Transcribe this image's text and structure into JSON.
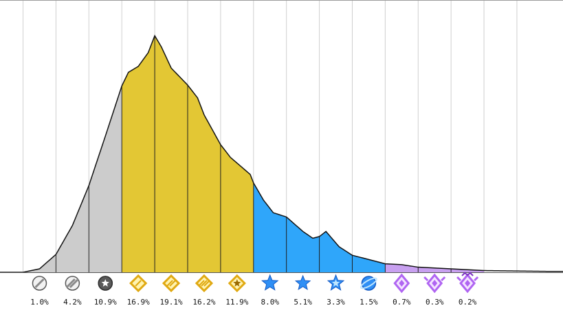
{
  "chart_data": {
    "type": "area",
    "title": "",
    "xlabel": "",
    "ylabel": "",
    "legend": "none",
    "grid": "vertical",
    "categories": [
      {
        "label": "1.0%",
        "tier": "grey",
        "icon": "grey-disc-icon",
        "color": "#cccccc"
      },
      {
        "label": "4.2%",
        "tier": "grey",
        "icon": "grey-double-stripe-icon",
        "color": "#cccccc"
      },
      {
        "label": "10.9%",
        "tier": "grey",
        "icon": "grey-star-disc-icon",
        "color": "#cccccc"
      },
      {
        "label": "16.9%",
        "tier": "gold",
        "icon": "gold-diamond-icon",
        "color": "#e3c734"
      },
      {
        "label": "19.1%",
        "tier": "gold",
        "icon": "gold-double-diamond-icon",
        "color": "#e3c734"
      },
      {
        "label": "16.2%",
        "tier": "gold",
        "icon": "gold-triple-diamond-icon",
        "color": "#e3c734"
      },
      {
        "label": "11.9%",
        "tier": "gold",
        "icon": "gold-star-diamond-icon",
        "color": "#e3c734"
      },
      {
        "label": "8.0%",
        "tier": "blue",
        "icon": "blue-star-icon",
        "color": "#2fa6fa"
      },
      {
        "label": "5.1%",
        "tier": "blue",
        "icon": "blue-star-small-icon",
        "color": "#2fa6fa"
      },
      {
        "label": "3.3%",
        "tier": "blue",
        "icon": "blue-star-outline-icon",
        "color": "#2fa6fa"
      },
      {
        "label": "1.5%",
        "tier": "blue",
        "icon": "blue-orbit-icon",
        "color": "#2fa6fa"
      },
      {
        "label": "0.7%",
        "tier": "purple",
        "icon": "purple-crystal-icon",
        "color": "#c8a0f0"
      },
      {
        "label": "0.3%",
        "tier": "purple",
        "icon": "purple-crystal-winged-icon",
        "color": "#c8a0f0"
      },
      {
        "label": "0.2%",
        "tier": "purple",
        "icon": "purple-crown-crystal-icon",
        "color": "#c8a0f0"
      }
    ],
    "values": [
      1.0,
      4.2,
      10.9,
      16.9,
      19.1,
      16.2,
      11.9,
      8.0,
      5.1,
      3.3,
      1.5,
      0.7,
      0.3,
      0.2
    ],
    "curve": {
      "x": [
        0.0,
        0.5,
        1.0,
        1.5,
        2.0,
        2.5,
        3.0,
        3.2,
        3.5,
        3.8,
        4.0,
        4.2,
        4.5,
        5.0,
        5.3,
        5.5,
        6.0,
        6.3,
        6.6,
        6.9,
        7.0,
        7.3,
        7.6,
        8.0,
        8.5,
        8.8,
        9.0,
        9.2,
        9.6,
        10.0,
        10.5,
        11.0,
        11.5,
        12.0,
        13.0,
        14.0,
        15.0,
        16.0,
        16.4
      ],
      "y": [
        0.0,
        0.4,
        2.1,
        5.5,
        10.2,
        16.0,
        21.9,
        23.5,
        24.2,
        25.8,
        27.8,
        26.5,
        24.0,
        22.0,
        20.5,
        18.5,
        15.0,
        13.5,
        12.5,
        11.5,
        10.5,
        8.5,
        7.0,
        6.5,
        4.8,
        4.0,
        4.2,
        4.8,
        3.0,
        2.0,
        1.5,
        1.0,
        0.9,
        0.6,
        0.4,
        0.2,
        0.15,
        0.1,
        0.1
      ]
    },
    "xlim": [
      -0.7,
      16.4
    ],
    "ylim": [
      0,
      32
    ],
    "band_boundaries": [
      0,
      1,
      2,
      3,
      4,
      5,
      6,
      7,
      8,
      9,
      10,
      11,
      12,
      13,
      14,
      15
    ]
  }
}
